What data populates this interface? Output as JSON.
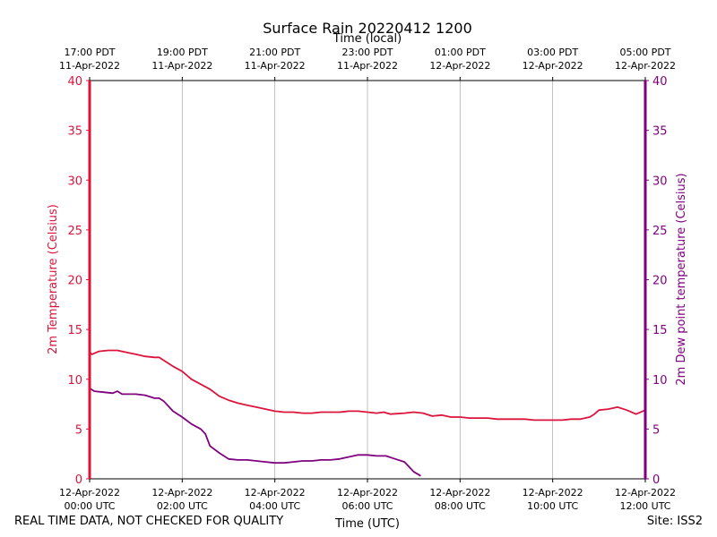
{
  "chart_data": {
    "type": "line",
    "title": "Surface Rain 20220412 1200",
    "top_xlabel": "Time (local)",
    "xlabel": "Time (UTC)",
    "ylabel_left": "2m Temperature (Celsius)",
    "ylabel_right": "2m Dew point temperature (Celsius)",
    "xlim_hours": [
      0,
      12
    ],
    "ylim": [
      0,
      40
    ],
    "y_ticks": [
      0,
      5,
      10,
      15,
      20,
      25,
      30,
      35,
      40
    ],
    "grid": "vertical",
    "x_ticks_bottom": [
      {
        "hour": 0,
        "date": "12-Apr-2022",
        "time": "00:00 UTC"
      },
      {
        "hour": 2,
        "date": "12-Apr-2022",
        "time": "02:00 UTC"
      },
      {
        "hour": 4,
        "date": "12-Apr-2022",
        "time": "04:00 UTC"
      },
      {
        "hour": 6,
        "date": "12-Apr-2022",
        "time": "06:00 UTC"
      },
      {
        "hour": 8,
        "date": "12-Apr-2022",
        "time": "08:00 UTC"
      },
      {
        "hour": 10,
        "date": "12-Apr-2022",
        "time": "10:00 UTC"
      },
      {
        "hour": 12,
        "date": "12-Apr-2022",
        "time": "12:00 UTC"
      }
    ],
    "x_ticks_top": [
      {
        "hour": 0,
        "time": "17:00 PDT",
        "date": "11-Apr-2022"
      },
      {
        "hour": 2,
        "time": "19:00 PDT",
        "date": "11-Apr-2022"
      },
      {
        "hour": 4,
        "time": "21:00 PDT",
        "date": "11-Apr-2022"
      },
      {
        "hour": 6,
        "time": "23:00 PDT",
        "date": "11-Apr-2022"
      },
      {
        "hour": 8,
        "time": "01:00 PDT",
        "date": "12-Apr-2022"
      },
      {
        "hour": 10,
        "time": "03:00 PDT",
        "date": "12-Apr-2022"
      },
      {
        "hour": 12,
        "time": "05:00 PDT",
        "date": "12-Apr-2022"
      }
    ],
    "series": [
      {
        "name": "2m Temperature",
        "axis": "left",
        "color": "#dc143c",
        "x": [
          0,
          0.05,
          0.2,
          0.4,
          0.6,
          0.8,
          1.0,
          1.2,
          1.4,
          1.5,
          1.6,
          1.8,
          2.0,
          2.2,
          2.4,
          2.6,
          2.8,
          3.0,
          3.2,
          3.4,
          3.6,
          3.8,
          4.0,
          4.2,
          4.4,
          4.6,
          4.8,
          5.0,
          5.2,
          5.4,
          5.6,
          5.8,
          6.0,
          6.2,
          6.35,
          6.5,
          6.8,
          7.0,
          7.2,
          7.4,
          7.6,
          7.8,
          8.0,
          8.2,
          8.4,
          8.6,
          8.8,
          9.0,
          9.2,
          9.4,
          9.6,
          9.8,
          10.0,
          10.2,
          10.4,
          10.6,
          10.8,
          10.9,
          11.0,
          11.2,
          11.4,
          11.6,
          11.8,
          12.0
        ],
        "values": [
          12.7,
          12.5,
          12.8,
          12.9,
          12.9,
          12.7,
          12.5,
          12.3,
          12.2,
          12.2,
          11.9,
          11.3,
          10.8,
          10.0,
          9.5,
          9.0,
          8.3,
          7.9,
          7.6,
          7.4,
          7.2,
          7.0,
          6.8,
          6.7,
          6.7,
          6.6,
          6.6,
          6.7,
          6.7,
          6.7,
          6.8,
          6.8,
          6.7,
          6.6,
          6.7,
          6.5,
          6.6,
          6.7,
          6.6,
          6.3,
          6.4,
          6.2,
          6.2,
          6.1,
          6.1,
          6.1,
          6.0,
          6.0,
          6.0,
          6.0,
          5.9,
          5.9,
          5.9,
          5.9,
          6.0,
          6.0,
          6.2,
          6.5,
          6.9,
          7.0,
          7.2,
          6.9,
          6.5,
          6.9
        ]
      },
      {
        "name": "2m Dew point temperature",
        "axis": "right",
        "color": "#800080",
        "x": [
          0,
          0.1,
          0.3,
          0.5,
          0.6,
          0.7,
          1.0,
          1.2,
          1.4,
          1.5,
          1.6,
          1.8,
          2.0,
          2.2,
          2.4,
          2.5,
          2.6,
          2.8,
          3.0,
          3.2,
          3.4,
          3.6,
          3.8,
          4.0,
          4.2,
          4.4,
          4.6,
          4.8,
          5.0,
          5.2,
          5.4,
          5.6,
          5.8,
          6.0,
          6.2,
          6.4,
          6.6,
          6.8,
          6.9,
          7.0,
          7.15
        ],
        "values": [
          9.1,
          8.8,
          8.7,
          8.6,
          8.8,
          8.5,
          8.5,
          8.4,
          8.1,
          8.1,
          7.8,
          6.8,
          6.2,
          5.5,
          5.0,
          4.5,
          3.3,
          2.6,
          2.0,
          1.9,
          1.9,
          1.8,
          1.7,
          1.6,
          1.6,
          1.7,
          1.8,
          1.8,
          1.9,
          1.9,
          2.0,
          2.2,
          2.4,
          2.4,
          2.3,
          2.3,
          2.0,
          1.7,
          1.2,
          0.7,
          0.3
        ]
      }
    ]
  },
  "footer": {
    "disclaimer": "REAL TIME DATA, NOT CHECKED FOR QUALITY",
    "site": "Site: ISS2"
  }
}
